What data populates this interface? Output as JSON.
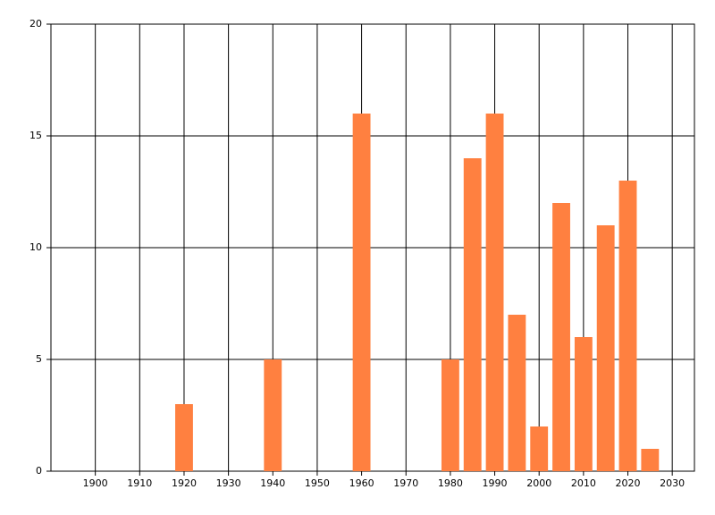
{
  "chart_data": {
    "type": "bar",
    "x": [
      1920,
      1940,
      1960,
      1980,
      1985,
      1990,
      1995,
      2000,
      2005,
      2010,
      2015,
      2020,
      2025
    ],
    "values": [
      3,
      5,
      16,
      5,
      14,
      16,
      7,
      2,
      12,
      6,
      11,
      13,
      1
    ],
    "color": "#ff8040",
    "xlim": [
      1890,
      2035
    ],
    "xticks": [
      1900,
      1910,
      1920,
      1930,
      1940,
      1950,
      1960,
      1970,
      1980,
      1990,
      2000,
      2010,
      2020,
      2030
    ],
    "ylim": [
      0,
      20
    ],
    "yticks": [
      0,
      5,
      10,
      15,
      20
    ],
    "grid": true
  }
}
